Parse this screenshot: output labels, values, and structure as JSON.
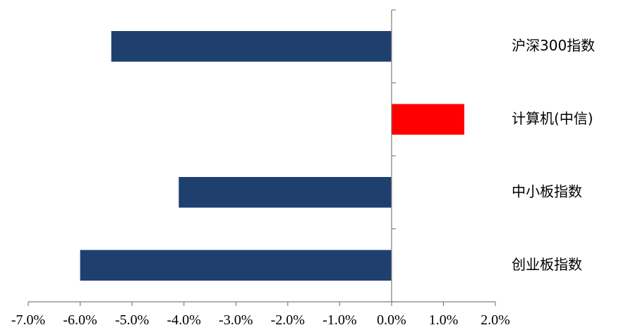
{
  "chart_data": {
    "type": "bar",
    "orientation": "horizontal",
    "categories": [
      "沪深300指数",
      "计算机(中信)",
      "中小板指数",
      "创业板指数"
    ],
    "values": [
      -5.4,
      1.4,
      -4.1,
      -6.0
    ],
    "colors": [
      "#1f3f6e",
      "#ff0000",
      "#1f3f6e",
      "#1f3f6e"
    ],
    "xlim": [
      -7.0,
      2.0
    ],
    "x_ticks": [
      -7,
      -6,
      -5,
      -4,
      -3,
      -2,
      -1,
      0,
      1,
      2
    ],
    "x_tick_labels": [
      "-7.0%",
      "-6.0%",
      "-5.0%",
      "-4.0%",
      "-3.0%",
      "-2.0%",
      "-1.0%",
      "0.0%",
      "1.0%",
      "2.0%"
    ],
    "grid": false,
    "legend": "none",
    "category_label_position": "right"
  }
}
